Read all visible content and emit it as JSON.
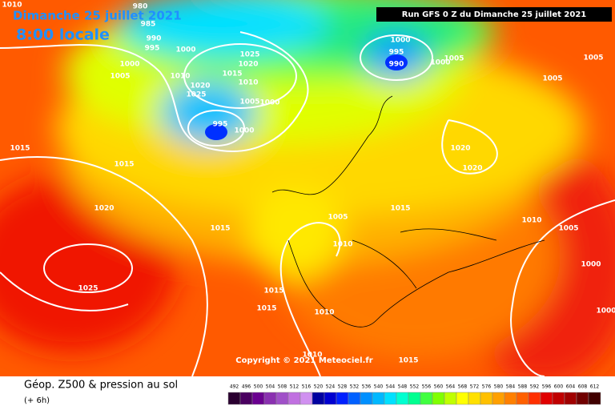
{
  "header": {
    "date": "Dimanche 25 juillet 2021",
    "time": "8:00 locale",
    "run": "Run GFS 0 Z du Dimanche 25 juillet 2021"
  },
  "copyright": "Copyright © 2021 Meteociel.fr",
  "footer": {
    "title": "Géop. Z500 & pression au sol",
    "lead": "(+ 6h)"
  },
  "isobar_labels": [
    "1010",
    "980",
    "985",
    "990",
    "995",
    "1000",
    "1000",
    "1005",
    "1010",
    "1025",
    "1020",
    "1015",
    "1020",
    "1025",
    "1010",
    "1005",
    "1000",
    "995",
    "1000",
    "1000",
    "995",
    "990",
    "1005",
    "1000",
    "1005",
    "1005",
    "1015",
    "1015",
    "1020",
    "1020",
    "1015",
    "1005",
    "1010",
    "1020",
    "1015",
    "1010",
    "1005",
    "1000",
    "1025",
    "1015",
    "1015",
    "1010",
    "1000",
    "1015",
    "1010"
  ],
  "scale": {
    "values": [
      492,
      496,
      500,
      504,
      508,
      512,
      516,
      520,
      524,
      528,
      532,
      536,
      540,
      544,
      548,
      552,
      556,
      560,
      564,
      568,
      572,
      576,
      580,
      584,
      588,
      592,
      596,
      600,
      604,
      608,
      612
    ],
    "colors": [
      "#2a0030",
      "#4a0060",
      "#6a0090",
      "#8a30b0",
      "#a050c8",
      "#c070e0",
      "#d090f0",
      "#0000a0",
      "#0000d0",
      "#0020ff",
      "#0060ff",
      "#0090ff",
      "#00b8ff",
      "#00e0ff",
      "#00ffd0",
      "#00ff90",
      "#40ff40",
      "#80ff00",
      "#c0ff00",
      "#ffff00",
      "#ffe000",
      "#ffc000",
      "#ffa000",
      "#ff8000",
      "#ff6000",
      "#ff3000",
      "#e00000",
      "#c00000",
      "#a00000",
      "#700000",
      "#400000"
    ]
  }
}
